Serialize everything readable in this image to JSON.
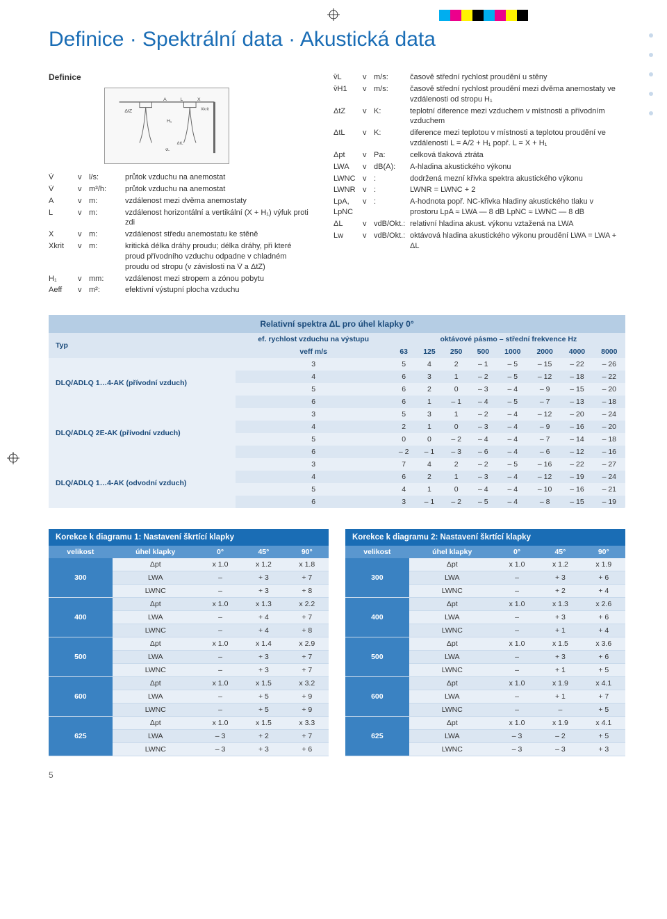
{
  "page_title": "Definice · Spektrální data · Akustická data",
  "definice_label": "Definice",
  "diagram": {
    "labels": [
      "A",
      "L",
      "X",
      "Xkrit",
      "ΔtZ",
      "H1",
      "ΔtL",
      "v̄L"
    ],
    "stroke": "#666666",
    "fill": "#f8f8f8"
  },
  "left_defs": [
    {
      "sym": "V̇",
      "unit": "l/s:",
      "desc": "průtok vzduchu na anemostat"
    },
    {
      "sym": "V̇",
      "unit": "m³/h:",
      "desc": "průtok vzduchu na anemostat"
    },
    {
      "sym": "A",
      "unit": "m:",
      "desc": "vzdálenost mezi dvěma anemostaty"
    },
    {
      "sym": "L",
      "unit": "m:",
      "desc": "vzdálenost horizontální a vertikální (X + H₁) výfuk proti zdi"
    },
    {
      "sym": "X",
      "unit": "m:",
      "desc": "vzdálenost středu anemostatu ke stěně"
    },
    {
      "sym": "Xkrit",
      "unit": "m:",
      "desc": "kritická délka dráhy proudu; délka dráhy, při které proud přívodního vzduchu odpadne v chladném proudu od stropu (v závislosti na V̇ a ΔtZ)"
    },
    {
      "sym": "H₁",
      "unit": "mm:",
      "desc": "vzdálenost mezi stropem a zónou pobytu"
    },
    {
      "sym": "Aeff",
      "unit": "m²:",
      "desc": "efektivní výstupní plocha vzduchu"
    }
  ],
  "right_defs": [
    {
      "sym": "v̄L",
      "unit": "m/s:",
      "desc": "časově střední rychlost proudění u stěny"
    },
    {
      "sym": "v̄H1",
      "unit": "m/s:",
      "desc": "časově střední rychlost proudění mezi dvěma anemostaty ve vzdálenosti od stropu H₁"
    },
    {
      "sym": "ΔtZ",
      "unit": "K:",
      "desc": "teplotní diference mezi vzduchem v místnosti a přívodním vzduchem"
    },
    {
      "sym": "ΔtL",
      "unit": "K:",
      "desc": "diference mezi teplotou v místnosti a teplotou proudění ve vzdálenosti L = A/2 + H₁ popř. L = X + H₁"
    },
    {
      "sym": "Δpt",
      "unit": "Pa:",
      "desc": "celková tlaková ztráta"
    },
    {
      "sym": "LWA",
      "unit": "dB(A):",
      "desc": "A-hladina akustického výkonu"
    },
    {
      "sym": "LWNC",
      "unit": ":",
      "desc": "dodržená mezní křivka spektra akustického výkonu"
    },
    {
      "sym": "LWNR",
      "unit": ":",
      "desc": "LWNR = LWNC + 2"
    },
    {
      "sym": "LpA, LpNC",
      "unit": ":",
      "desc": "A-hodnota popř. NC-křivka hladiny akustického tlaku v prostoru  LpA ≈ LWA — 8 dB   LpNC ≈ LWNC — 8 dB"
    },
    {
      "sym": "ΔL",
      "unit": "vdB/Okt.:",
      "desc": "relativní hladina akust. výkonu vztažená na LWA"
    },
    {
      "sym": "Lw",
      "unit": "vdB/Okt.:",
      "desc": "oktávová hladina akustického výkonu proudění LWA = LWA + ΔL"
    }
  ],
  "in_label": "v",
  "spectra": {
    "title": "Relativní spektra ΔL pro úhel klapky 0°",
    "col_typ": "Typ",
    "col_eff": "ef. rychlost vzduchu na výstupu",
    "col_veff": "veff m/s",
    "col_okt": "oktávové pásmo – střední frekvence Hz",
    "freqs": [
      "63",
      "125",
      "250",
      "500",
      "1000",
      "2000",
      "4000",
      "8000"
    ],
    "groups": [
      {
        "type": "DLQ/ADLQ 1…4-AK (přívodní vzduch)",
        "rows": [
          {
            "v": "3",
            "vals": [
              "5",
              "4",
              "2",
              "– 1",
              "– 5",
              "– 15",
              "– 22",
              "– 26"
            ]
          },
          {
            "v": "4",
            "vals": [
              "6",
              "3",
              "1",
              "– 2",
              "– 5",
              "– 12",
              "– 18",
              "– 22"
            ]
          },
          {
            "v": "5",
            "vals": [
              "6",
              "2",
              "0",
              "– 3",
              "– 4",
              "– 9",
              "– 15",
              "– 20"
            ]
          },
          {
            "v": "6",
            "vals": [
              "6",
              "1",
              "– 1",
              "– 4",
              "– 5",
              "– 7",
              "– 13",
              "– 18"
            ]
          }
        ]
      },
      {
        "type": "DLQ/ADLQ 2E-AK (přívodní vzduch)",
        "rows": [
          {
            "v": "3",
            "vals": [
              "5",
              "3",
              "1",
              "– 2",
              "– 4",
              "– 12",
              "– 20",
              "– 24"
            ]
          },
          {
            "v": "4",
            "vals": [
              "2",
              "1",
              "0",
              "– 3",
              "– 4",
              "– 9",
              "– 16",
              "– 20"
            ]
          },
          {
            "v": "5",
            "vals": [
              "0",
              "0",
              "– 2",
              "– 4",
              "– 4",
              "– 7",
              "– 14",
              "– 18"
            ]
          },
          {
            "v": "6",
            "vals": [
              "– 2",
              "– 1",
              "– 3",
              "– 6",
              "– 4",
              "– 6",
              "– 12",
              "– 16"
            ]
          }
        ]
      },
      {
        "type": "DLQ/ADLQ 1…4-AK (odvodní vzduch)",
        "rows": [
          {
            "v": "3",
            "vals": [
              "7",
              "4",
              "2",
              "– 2",
              "– 5",
              "– 16",
              "– 22",
              "– 27"
            ]
          },
          {
            "v": "4",
            "vals": [
              "6",
              "2",
              "1",
              "– 3",
              "– 4",
              "– 12",
              "– 19",
              "– 24"
            ]
          },
          {
            "v": "5",
            "vals": [
              "4",
              "1",
              "0",
              "– 4",
              "– 4",
              "– 10",
              "– 16",
              "– 21"
            ]
          },
          {
            "v": "6",
            "vals": [
              "3",
              "– 1",
              "– 2",
              "– 5",
              "– 4",
              "– 8",
              "– 15",
              "– 19"
            ]
          }
        ]
      }
    ]
  },
  "corr1": {
    "title": "Korekce k diagramu 1: Nastavení škrtící klapky",
    "col_size": "velikost",
    "col_angle": "úhel klapky",
    "angles": [
      "0°",
      "45°",
      "90°"
    ],
    "params": [
      "Δpt",
      "LWA",
      "LWNC"
    ],
    "sizes": [
      {
        "size": "300",
        "rows": [
          [
            "x 1.0",
            "x 1.2",
            "x 1.8"
          ],
          [
            "–",
            "+ 3",
            "+ 7"
          ],
          [
            "–",
            "+ 3",
            "+ 8"
          ]
        ]
      },
      {
        "size": "400",
        "rows": [
          [
            "x 1.0",
            "x 1.3",
            "x 2.2"
          ],
          [
            "–",
            "+ 4",
            "+ 7"
          ],
          [
            "–",
            "+ 4",
            "+ 8"
          ]
        ]
      },
      {
        "size": "500",
        "rows": [
          [
            "x 1.0",
            "x 1.4",
            "x 2.9"
          ],
          [
            "–",
            "+ 3",
            "+ 7"
          ],
          [
            "–",
            "+ 3",
            "+ 7"
          ]
        ]
      },
      {
        "size": "600",
        "rows": [
          [
            "x 1.0",
            "x 1.5",
            "x 3.2"
          ],
          [
            "–",
            "+ 5",
            "+ 9"
          ],
          [
            "–",
            "+ 5",
            "+ 9"
          ]
        ]
      },
      {
        "size": "625",
        "rows": [
          [
            "x 1.0",
            "x 1.5",
            "x 3.3"
          ],
          [
            "– 3",
            "+ 2",
            "+ 7"
          ],
          [
            "– 3",
            "+ 3",
            "+ 6"
          ]
        ]
      }
    ]
  },
  "corr2": {
    "title": "Korekce k diagramu 2: Nastavení škrtící klapky",
    "col_size": "velikost",
    "col_angle": "úhel klapky",
    "angles": [
      "0°",
      "45°",
      "90°"
    ],
    "params": [
      "Δpt",
      "LWA",
      "LWNC"
    ],
    "sizes": [
      {
        "size": "300",
        "rows": [
          [
            "x 1.0",
            "x 1.2",
            "x 1.9"
          ],
          [
            "–",
            "+ 3",
            "+ 6"
          ],
          [
            "–",
            "+ 2",
            "+ 4"
          ]
        ]
      },
      {
        "size": "400",
        "rows": [
          [
            "x 1.0",
            "x 1.3",
            "x 2.6"
          ],
          [
            "–",
            "+ 3",
            "+ 6"
          ],
          [
            "–",
            "+ 1",
            "+ 4"
          ]
        ]
      },
      {
        "size": "500",
        "rows": [
          [
            "x 1.0",
            "x 1.5",
            "x 3.6"
          ],
          [
            "–",
            "+ 3",
            "+ 6"
          ],
          [
            "–",
            "+ 1",
            "+ 5"
          ]
        ]
      },
      {
        "size": "600",
        "rows": [
          [
            "x 1.0",
            "x 1.9",
            "x 4.1"
          ],
          [
            "–",
            "+ 1",
            "+ 7"
          ],
          [
            "–",
            "–",
            "+ 5"
          ]
        ]
      },
      {
        "size": "625",
        "rows": [
          [
            "x 1.0",
            "x 1.9",
            "x 4.1"
          ],
          [
            "– 3",
            "– 2",
            "+ 5"
          ],
          [
            "– 3",
            "– 3",
            "+ 3"
          ]
        ]
      }
    ]
  },
  "pagenum": "5",
  "colorbar": [
    "#00aeef",
    "#ec008c",
    "#fff200",
    "#000000",
    "#00aeef",
    "#ec008c",
    "#fff200",
    "#000000"
  ]
}
